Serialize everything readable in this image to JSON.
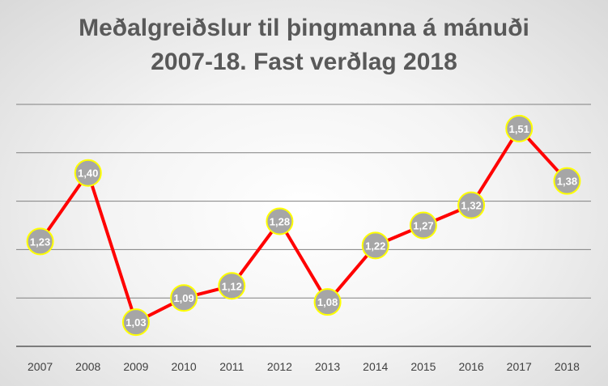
{
  "title": {
    "line1": "Meðalgreiðslur til þingmanna á mánuði",
    "line2": "2007-18. Fast verðlag 2018"
  },
  "colors": {
    "line": "#ff0000",
    "marker_fill": "#a6a6a6",
    "marker_stroke": "#ffff00",
    "grid": "#808080",
    "title": "#595959"
  },
  "chart_data": {
    "type": "line",
    "title": "Meðalgreiðslur til þingmanna á mánuði 2007-18. Fast verðlag 2018",
    "categories": [
      "2007",
      "2008",
      "2009",
      "2010",
      "2011",
      "2012",
      "2013",
      "2014",
      "2015",
      "2016",
      "2017",
      "2018"
    ],
    "series": [
      {
        "values": [
          1.23,
          1.4,
          1.03,
          1.09,
          1.12,
          1.28,
          1.08,
          1.22,
          1.27,
          1.32,
          1.51,
          1.38
        ],
        "labels": [
          "1,23",
          "1,40",
          "1,03",
          "1,09",
          "1,12",
          "1,28",
          "1,08",
          "1,22",
          "1,27",
          "1,32",
          "1,51",
          "1,38"
        ]
      }
    ],
    "ylim": [
      0.97,
      1.57
    ],
    "grid": true,
    "y_tick_labels_shown": false,
    "legend": "none"
  }
}
